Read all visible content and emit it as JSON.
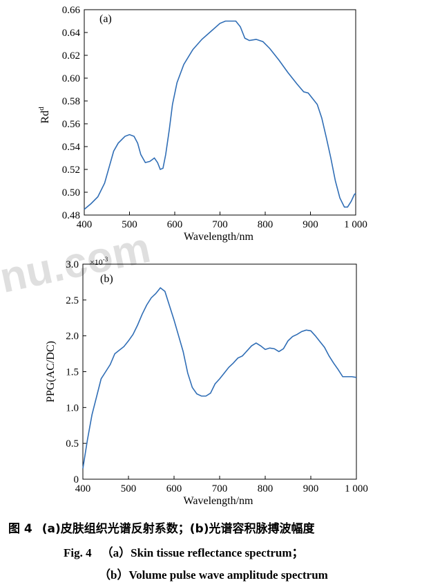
{
  "watermark": "nu.com",
  "chart_data": [
    {
      "type": "line",
      "panel_label": "(a)",
      "xlabel": "Wavelength/nm",
      "ylabel_base": "Rd",
      "ylabel_sup": "d",
      "xlim": [
        400,
        1000
      ],
      "ylim": [
        0.48,
        0.66
      ],
      "x_ticks": [
        400,
        500,
        600,
        700,
        800,
        900,
        1000
      ],
      "x_tick_labels": [
        "400",
        "500",
        "600",
        "700",
        "800",
        "900",
        "1 000"
      ],
      "y_ticks": [
        0.48,
        0.5,
        0.52,
        0.54,
        0.56,
        0.58,
        0.6,
        0.62,
        0.64,
        0.66
      ],
      "y_tick_labels": [
        "0.48",
        "0.50",
        "0.52",
        "0.54",
        "0.56",
        "0.58",
        "0.60",
        "0.62",
        "0.64",
        "0.66"
      ],
      "grid": false,
      "line_color": "#2f6db5",
      "series": [
        {
          "x": [
            400,
            415,
            430,
            445,
            455,
            465,
            475,
            490,
            500,
            510,
            518,
            525,
            535,
            545,
            555,
            562,
            568,
            574,
            580,
            588,
            595,
            605,
            620,
            640,
            660,
            680,
            700,
            712,
            722,
            735,
            745,
            755,
            765,
            780,
            795,
            810,
            830,
            850,
            870,
            885,
            895,
            905,
            915,
            925,
            935,
            945,
            955,
            965,
            975,
            982,
            990,
            997,
            1000
          ],
          "y": [
            0.485,
            0.49,
            0.496,
            0.508,
            0.522,
            0.536,
            0.543,
            0.549,
            0.5505,
            0.549,
            0.543,
            0.533,
            0.526,
            0.527,
            0.53,
            0.526,
            0.52,
            0.521,
            0.533,
            0.555,
            0.577,
            0.596,
            0.612,
            0.625,
            0.634,
            0.641,
            0.648,
            0.65,
            0.65,
            0.65,
            0.645,
            0.635,
            0.633,
            0.634,
            0.632,
            0.626,
            0.616,
            0.605,
            0.595,
            0.588,
            0.587,
            0.582,
            0.577,
            0.565,
            0.548,
            0.53,
            0.51,
            0.495,
            0.487,
            0.487,
            0.492,
            0.498,
            0.499
          ]
        }
      ]
    },
    {
      "type": "line",
      "panel_label": "(b)",
      "xlabel": "Wavelength/nm",
      "ylabel": "PPG(AC/DC)",
      "y_exponent_label": "×10",
      "y_exponent_sup": "-3",
      "xlim": [
        400,
        1000
      ],
      "ylim": [
        0,
        3.0
      ],
      "x_ticks": [
        400,
        500,
        600,
        700,
        800,
        900,
        1000
      ],
      "x_tick_labels": [
        "400",
        "500",
        "600",
        "700",
        "800",
        "900",
        "1 000"
      ],
      "y_ticks": [
        0,
        0.5,
        1.0,
        1.5,
        2.0,
        2.5,
        3.0
      ],
      "y_tick_labels": [
        "0",
        "0.5",
        "1.0",
        "1.5",
        "2.0",
        "2.5",
        "3.0"
      ],
      "grid": false,
      "line_color": "#2f6db5",
      "series": [
        {
          "x": [
            400,
            410,
            420,
            430,
            440,
            450,
            460,
            470,
            480,
            490,
            500,
            510,
            520,
            530,
            540,
            550,
            560,
            570,
            580,
            590,
            600,
            610,
            620,
            630,
            640,
            650,
            660,
            670,
            680,
            690,
            700,
            710,
            720,
            730,
            740,
            750,
            760,
            770,
            780,
            790,
            800,
            810,
            820,
            830,
            840,
            850,
            860,
            870,
            880,
            890,
            900,
            910,
            920,
            930,
            940,
            950,
            960,
            970,
            980,
            990,
            1000
          ],
          "y": [
            0.15,
            0.55,
            0.9,
            1.15,
            1.4,
            1.5,
            1.6,
            1.75,
            1.8,
            1.85,
            1.93,
            2.02,
            2.15,
            2.3,
            2.43,
            2.53,
            2.59,
            2.67,
            2.62,
            2.42,
            2.22,
            2.0,
            1.78,
            1.48,
            1.28,
            1.19,
            1.16,
            1.16,
            1.2,
            1.33,
            1.4,
            1.48,
            1.56,
            1.62,
            1.69,
            1.72,
            1.79,
            1.86,
            1.9,
            1.86,
            1.81,
            1.83,
            1.82,
            1.78,
            1.82,
            1.93,
            1.99,
            2.02,
            2.06,
            2.08,
            2.07,
            2.0,
            1.92,
            1.84,
            1.72,
            1.62,
            1.53,
            1.43,
            1.43,
            1.43,
            1.42
          ]
        }
      ]
    }
  ],
  "captions": {
    "zh_fig": "图 4",
    "zh_text": "(a)皮肤组织光谱反射系数；(b)光谱容积脉搏波幅度",
    "en_fig": "Fig. 4",
    "en_line1": "（a）Skin tissue reflectance spectrum；",
    "en_line2": "（b）Volume pulse wave amplitude spectrum"
  }
}
